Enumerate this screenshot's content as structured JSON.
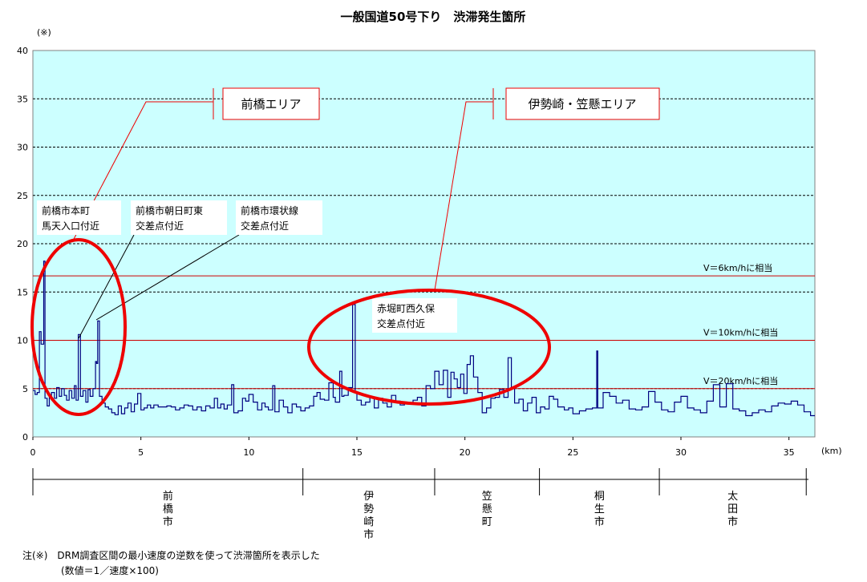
{
  "chart_data": {
    "type": "line",
    "title": "一般国道50号下り　渋滞発生箇所",
    "y_unit": "(※)",
    "x_unit": "(km)",
    "xlim": [
      0,
      36.2
    ],
    "ylim": [
      0,
      40
    ],
    "x_ticks": [
      0,
      5,
      10,
      15,
      20,
      25,
      30,
      35
    ],
    "y_ticks": [
      0,
      5,
      10,
      15,
      20,
      25,
      30,
      35,
      40
    ],
    "plot_background": "#ccffff",
    "grid": "dashed horizontal",
    "series": [
      {
        "color": "#000080",
        "step": true,
        "points": [
          [
            0.0,
            4.8
          ],
          [
            0.1,
            4.4
          ],
          [
            0.2,
            4.6
          ],
          [
            0.3,
            10.9
          ],
          [
            0.38,
            9.6
          ],
          [
            0.45,
            9.6
          ],
          [
            0.5,
            18.2
          ],
          [
            0.56,
            4.0
          ],
          [
            0.66,
            3.2
          ],
          [
            0.76,
            4.3
          ],
          [
            0.86,
            4.6
          ],
          [
            1.0,
            4.0
          ],
          [
            1.1,
            5.1
          ],
          [
            1.22,
            4.2
          ],
          [
            1.33,
            5.0
          ],
          [
            1.45,
            4.3
          ],
          [
            1.56,
            3.8
          ],
          [
            1.68,
            4.8
          ],
          [
            1.8,
            4.0
          ],
          [
            1.92,
            5.3
          ],
          [
            2.0,
            3.8
          ],
          [
            2.1,
            10.6
          ],
          [
            2.2,
            4.2
          ],
          [
            2.32,
            4.8
          ],
          [
            2.45,
            3.6
          ],
          [
            2.55,
            4.9
          ],
          [
            2.65,
            4.2
          ],
          [
            2.78,
            5.0
          ],
          [
            2.9,
            7.8
          ],
          [
            2.95,
            7.6
          ],
          [
            3.0,
            12.0
          ],
          [
            3.08,
            4.2
          ],
          [
            3.2,
            3.5
          ],
          [
            3.35,
            3.1
          ],
          [
            3.5,
            2.9
          ],
          [
            3.65,
            2.5
          ],
          [
            3.8,
            2.3
          ],
          [
            3.95,
            3.2
          ],
          [
            4.1,
            2.4
          ],
          [
            4.25,
            3.0
          ],
          [
            4.4,
            3.5
          ],
          [
            4.55,
            2.6
          ],
          [
            4.7,
            3.4
          ],
          [
            4.85,
            4.5
          ],
          [
            5.0,
            2.8
          ],
          [
            5.15,
            3.0
          ],
          [
            5.3,
            3.3
          ],
          [
            5.45,
            3.0
          ],
          [
            5.6,
            3.3
          ],
          [
            5.8,
            3.1
          ],
          [
            6.0,
            3.1
          ],
          [
            6.2,
            3.2
          ],
          [
            6.4,
            3.1
          ],
          [
            6.6,
            2.8
          ],
          [
            6.8,
            3.0
          ],
          [
            7.0,
            3.3
          ],
          [
            7.2,
            3.2
          ],
          [
            7.4,
            2.8
          ],
          [
            7.6,
            3.1
          ],
          [
            7.8,
            2.7
          ],
          [
            8.0,
            3.2
          ],
          [
            8.2,
            3.0
          ],
          [
            8.4,
            4.0
          ],
          [
            8.55,
            3.0
          ],
          [
            8.7,
            3.4
          ],
          [
            8.85,
            2.9
          ],
          [
            9.0,
            3.3
          ],
          [
            9.2,
            5.4
          ],
          [
            9.3,
            2.5
          ],
          [
            9.5,
            2.7
          ],
          [
            9.7,
            4.0
          ],
          [
            9.85,
            3.7
          ],
          [
            10.0,
            4.4
          ],
          [
            10.2,
            3.6
          ],
          [
            10.4,
            2.8
          ],
          [
            10.6,
            3.5
          ],
          [
            10.75,
            3.1
          ],
          [
            10.9,
            2.8
          ],
          [
            11.1,
            5.3
          ],
          [
            11.2,
            2.6
          ],
          [
            11.4,
            3.8
          ],
          [
            11.6,
            3.1
          ],
          [
            11.8,
            2.5
          ],
          [
            12.0,
            3.4
          ],
          [
            12.2,
            3.1
          ],
          [
            12.4,
            2.7
          ],
          [
            12.6,
            3.0
          ],
          [
            12.8,
            3.2
          ],
          [
            13.0,
            4.2
          ],
          [
            13.15,
            4.6
          ],
          [
            13.3,
            3.9
          ],
          [
            13.5,
            3.8
          ],
          [
            13.7,
            5.6
          ],
          [
            13.9,
            4.1
          ],
          [
            14.0,
            3.6
          ],
          [
            14.2,
            6.8
          ],
          [
            14.3,
            4.2
          ],
          [
            14.4,
            4.3
          ],
          [
            14.6,
            5.1
          ],
          [
            14.8,
            13.7
          ],
          [
            14.92,
            4.6
          ],
          [
            15.0,
            3.8
          ],
          [
            15.2,
            3.3
          ],
          [
            15.4,
            3.6
          ],
          [
            15.6,
            4.1
          ],
          [
            15.8,
            3.0
          ],
          [
            16.0,
            4.0
          ],
          [
            16.2,
            3.5
          ],
          [
            16.4,
            3.1
          ],
          [
            16.6,
            4.3
          ],
          [
            16.8,
            3.7
          ],
          [
            17.0,
            3.3
          ],
          [
            17.2,
            3.6
          ],
          [
            17.4,
            3.4
          ],
          [
            17.6,
            3.8
          ],
          [
            17.8,
            4.1
          ],
          [
            18.0,
            3.2
          ],
          [
            18.2,
            5.3
          ],
          [
            18.4,
            5.0
          ],
          [
            18.6,
            6.8
          ],
          [
            18.8,
            5.4
          ],
          [
            19.0,
            6.9
          ],
          [
            19.2,
            4.1
          ],
          [
            19.35,
            6.7
          ],
          [
            19.5,
            6.0
          ],
          [
            19.65,
            5.1
          ],
          [
            19.8,
            6.5
          ],
          [
            19.95,
            4.5
          ],
          [
            20.1,
            7.5
          ],
          [
            20.25,
            8.4
          ],
          [
            20.4,
            6.2
          ],
          [
            20.6,
            4.6
          ],
          [
            20.8,
            2.5
          ],
          [
            21.0,
            3.0
          ],
          [
            21.2,
            4.0
          ],
          [
            21.4,
            4.1
          ],
          [
            21.6,
            4.9
          ],
          [
            21.8,
            4.1
          ],
          [
            22.0,
            8.2
          ],
          [
            22.15,
            5.0
          ],
          [
            22.3,
            3.5
          ],
          [
            22.5,
            3.9
          ],
          [
            22.7,
            2.7
          ],
          [
            22.9,
            3.5
          ],
          [
            23.1,
            4.1
          ],
          [
            23.3,
            2.5
          ],
          [
            23.5,
            3.1
          ],
          [
            23.7,
            2.9
          ],
          [
            23.9,
            4.2
          ],
          [
            24.1,
            3.9
          ],
          [
            24.3,
            3.1
          ],
          [
            24.6,
            2.8
          ],
          [
            24.8,
            3.0
          ],
          [
            25.0,
            2.4
          ],
          [
            25.3,
            2.7
          ],
          [
            25.6,
            2.9
          ],
          [
            25.9,
            3.0
          ],
          [
            26.1,
            8.9
          ],
          [
            26.15,
            3.0
          ],
          [
            26.4,
            4.6
          ],
          [
            26.7,
            4.2
          ],
          [
            27.0,
            3.5
          ],
          [
            27.3,
            3.8
          ],
          [
            27.6,
            2.9
          ],
          [
            27.9,
            2.8
          ],
          [
            28.2,
            3.1
          ],
          [
            28.5,
            4.7
          ],
          [
            28.8,
            3.6
          ],
          [
            29.1,
            2.8
          ],
          [
            29.4,
            2.6
          ],
          [
            29.7,
            3.6
          ],
          [
            30.0,
            4.2
          ],
          [
            30.3,
            3.0
          ],
          [
            30.6,
            2.8
          ],
          [
            30.9,
            2.5
          ],
          [
            31.2,
            3.7
          ],
          [
            31.5,
            5.4
          ],
          [
            31.8,
            3.1
          ],
          [
            32.1,
            5.5
          ],
          [
            32.4,
            2.9
          ],
          [
            32.7,
            2.7
          ],
          [
            33.0,
            2.2
          ],
          [
            33.3,
            2.5
          ],
          [
            33.6,
            2.8
          ],
          [
            33.9,
            2.6
          ],
          [
            34.2,
            3.2
          ],
          [
            34.5,
            3.5
          ],
          [
            34.8,
            3.4
          ],
          [
            35.1,
            3.7
          ],
          [
            35.4,
            3.3
          ],
          [
            35.7,
            2.6
          ],
          [
            36.0,
            2.2
          ]
        ]
      }
    ],
    "reference_lines": [
      {
        "y": 16.67,
        "label": "V＝6km/hに相当"
      },
      {
        "y": 10,
        "label": "V＝10km/hに相当"
      },
      {
        "y": 5,
        "label": "V＝20km/hに相当"
      }
    ],
    "area_callouts": [
      {
        "label": "前橋エリア"
      },
      {
        "label": "伊勢崎・笠懸エリア"
      }
    ],
    "annotations": [
      {
        "lines": [
          "前橋市本町",
          "馬天入口付近"
        ]
      },
      {
        "lines": [
          "前橋市朝日町東",
          "交差点付近"
        ]
      },
      {
        "lines": [
          "前橋市環状線",
          "交差点付近"
        ]
      },
      {
        "lines": [
          "赤堀町西久保",
          "交差点付近"
        ]
      }
    ],
    "regions": [
      {
        "name": "前橋市"
      },
      {
        "name": "伊勢崎市"
      },
      {
        "name": "笠懸町"
      },
      {
        "name": "桐生市"
      },
      {
        "name": "太田市"
      }
    ],
    "region_boundaries_km": [
      0,
      12.5,
      18.6,
      23.45,
      29.0,
      35.8
    ],
    "footnote_lines": [
      "注(※)　DRM調査区間の最小速度の逆数を使って渋滞箇所を表示した",
      "(数値＝1／速度×100)"
    ],
    "colors": {
      "series": "#000080",
      "reference": "#cc0000",
      "highlight": "#ee0000"
    }
  }
}
